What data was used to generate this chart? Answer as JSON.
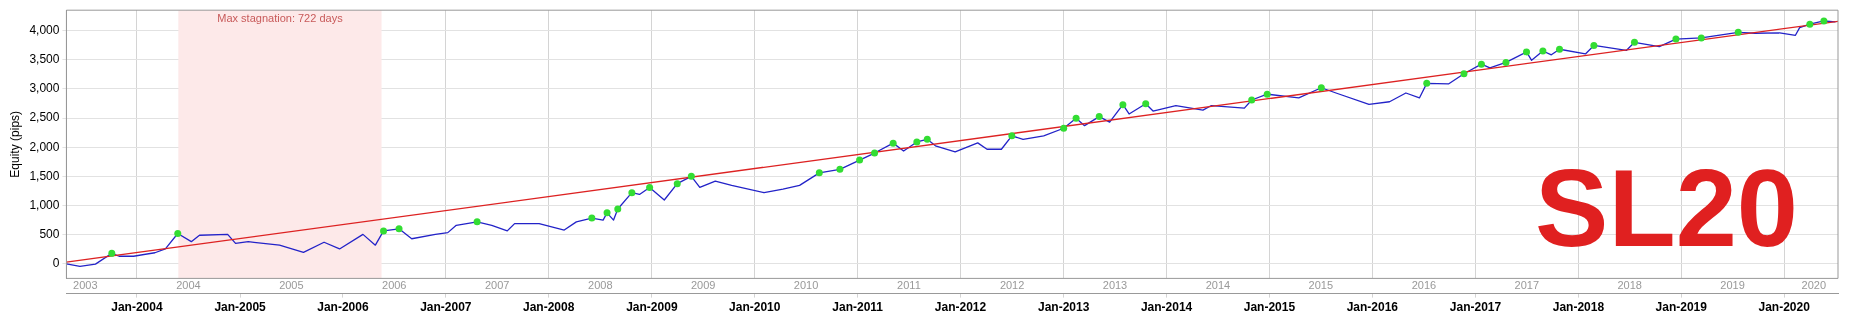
{
  "chart_data": {
    "type": "line",
    "ylabel": "Equity (pips)",
    "xlim": [
      "2003-04-26",
      "2020-07-10"
    ],
    "xticks": [
      {
        "value": "2004-01-01",
        "label": "Jan-2004"
      },
      {
        "value": "2005-01-01",
        "label": "Jan-2005"
      },
      {
        "value": "2006-01-01",
        "label": "Jan-2006"
      },
      {
        "value": "2007-01-01",
        "label": "Jan-2007"
      },
      {
        "value": "2008-01-01",
        "label": "Jan-2008"
      },
      {
        "value": "2009-01-01",
        "label": "Jan-2009"
      },
      {
        "value": "2010-01-01",
        "label": "Jan-2010"
      },
      {
        "value": "2011-01-01",
        "label": "Jan-2011"
      },
      {
        "value": "2012-01-01",
        "label": "Jan-2012"
      },
      {
        "value": "2013-01-01",
        "label": "Jan-2013"
      },
      {
        "value": "2014-01-01",
        "label": "Jan-2014"
      },
      {
        "value": "2015-01-01",
        "label": "Jan-2015"
      },
      {
        "value": "2016-01-01",
        "label": "Jan-2016"
      },
      {
        "value": "2017-01-01",
        "label": "Jan-2017"
      },
      {
        "value": "2018-01-01",
        "label": "Jan-2018"
      },
      {
        "value": "2019-01-01",
        "label": "Jan-2019"
      },
      {
        "value": "2020-01-01",
        "label": "Jan-2020"
      }
    ],
    "x2lim": [
      "2003-04-26",
      "2020-07-10"
    ],
    "x2ticks": [
      {
        "value": "2003-07-02",
        "label": "2003"
      },
      {
        "value": "2004-07-02",
        "label": "2004"
      },
      {
        "value": "2005-07-02",
        "label": "2005"
      },
      {
        "value": "2006-07-02",
        "label": "2006"
      },
      {
        "value": "2007-07-02",
        "label": "2007"
      },
      {
        "value": "2008-07-02",
        "label": "2008"
      },
      {
        "value": "2009-07-02",
        "label": "2009"
      },
      {
        "value": "2010-07-02",
        "label": "2010"
      },
      {
        "value": "2011-07-02",
        "label": "2011"
      },
      {
        "value": "2012-07-02",
        "label": "2012"
      },
      {
        "value": "2013-07-02",
        "label": "2013"
      },
      {
        "value": "2014-07-02",
        "label": "2014"
      },
      {
        "value": "2015-07-02",
        "label": "2015"
      },
      {
        "value": "2016-07-02",
        "label": "2016"
      },
      {
        "value": "2017-07-02",
        "label": "2017"
      },
      {
        "value": "2018-07-02",
        "label": "2018"
      },
      {
        "value": "2019-07-02",
        "label": "2019"
      },
      {
        "value": "2020-04-15",
        "label": "2020"
      }
    ],
    "ylim": [
      -250,
      4350
    ],
    "yticks": [
      0,
      500,
      {
        "value": 1000,
        "label": "1,000"
      },
      {
        "value": 1500,
        "label": "1,500"
      },
      {
        "value": 2000,
        "label": "2,000"
      },
      {
        "value": 2500,
        "label": "2,500"
      },
      {
        "value": 3000,
        "label": "3,000"
      },
      {
        "value": 3500,
        "label": "3,500"
      },
      {
        "value": 4000,
        "label": "4,000"
      }
    ],
    "grid": true,
    "legend": false,
    "bands": [
      {
        "axis": "x",
        "from": "2004-05-27",
        "to": "2006-05-18",
        "label": "Max stagnation: 722 days",
        "color": "#fde9e9"
      }
    ],
    "annotations": [
      "SL20"
    ],
    "series": [
      {
        "type": "line",
        "color": "#2323c8",
        "x": [
          "2003-04-26",
          "2003-06-13",
          "2003-08-07",
          "2003-10-04",
          "2003-10-30",
          "2003-12-20",
          "2004-03-05",
          "2004-04-11",
          "2004-05-25",
          "2004-07-12",
          "2004-08-10",
          "2004-11-18",
          "2004-12-16",
          "2005-01-30",
          "2005-05-21",
          "2005-08-14",
          "2005-10-26",
          "2005-12-20",
          "2006-03-13",
          "2006-04-26",
          "2006-05-25",
          "2006-07-19",
          "2006-09-02",
          "2006-11-25",
          "2007-01-08",
          "2007-02-07",
          "2007-04-22",
          "2007-06-13",
          "2007-08-07",
          "2007-09-02",
          "2007-11-28",
          "2008-02-25",
          "2008-04-08",
          "2008-06-02",
          "2008-07-12",
          "2008-07-26",
          "2008-08-18",
          "2008-09-02",
          "2008-10-22",
          "2008-11-18",
          "2008-12-24",
          "2009-02-14",
          "2009-04-01",
          "2009-05-21",
          "2009-06-20",
          "2009-08-14",
          "2009-10-11",
          "2010-02-03",
          "2010-04-11",
          "2010-06-09",
          "2010-08-18",
          "2010-10-30",
          "2011-01-08",
          "2011-03-02",
          "2011-05-07",
          "2011-06-13",
          "2011-07-30",
          "2011-09-05",
          "2011-10-04",
          "2011-12-13",
          "2012-03-02",
          "2012-04-04",
          "2012-05-25",
          "2012-07-01",
          "2012-08-10",
          "2012-10-22",
          "2013-01-01",
          "2013-02-14",
          "2013-03-16",
          "2013-05-07",
          "2013-06-13",
          "2013-07-30",
          "2013-08-21",
          "2013-10-19",
          "2013-11-14",
          "2014-02-03",
          "2014-05-10",
          "2014-06-09",
          "2014-10-04",
          "2014-10-30",
          "2014-12-24",
          "2015-04-15",
          "2015-07-04",
          "2015-08-25",
          "2015-12-20",
          "2016-03-02",
          "2016-04-29",
          "2016-06-16",
          "2016-07-12",
          "2016-09-27",
          "2016-11-21",
          "2017-01-22",
          "2017-02-21",
          "2017-04-19",
          "2017-07-01",
          "2017-07-19",
          "2017-08-28",
          "2017-09-27",
          "2017-10-26",
          "2018-01-26",
          "2018-02-25",
          "2018-06-20",
          "2018-07-19",
          "2018-10-15",
          "2018-12-13",
          "2019-03-13",
          "2019-07-22",
          "2019-09-20",
          "2019-12-16",
          "2020-02-10",
          "2020-02-25",
          "2020-04-01",
          "2020-05-21",
          "2020-07-01"
        ],
        "values": [
          0,
          -45,
          -5,
          180,
          130,
          130,
          190,
          255,
          520,
          380,
          490,
          505,
          350,
          380,
          320,
          195,
          370,
          255,
          505,
          320,
          565,
          600,
          430,
          505,
          535,
          660,
          720,
          660,
          565,
          690,
          690,
          580,
          720,
          785,
          750,
          875,
          750,
          940,
          1220,
          1190,
          1310,
          1095,
          1375,
          1500,
          1310,
          1420,
          1345,
          1220,
          1280,
          1345,
          1560,
          1620,
          1780,
          1900,
          2070,
          1935,
          2090,
          2135,
          2025,
          1920,
          2075,
          1965,
          1965,
          2195,
          2135,
          2195,
          2325,
          2495,
          2370,
          2525,
          2430,
          2730,
          2570,
          2745,
          2620,
          2715,
          2635,
          2715,
          2670,
          2810,
          2910,
          2845,
          3020,
          2930,
          2735,
          2780,
          2930,
          2845,
          3095,
          3085,
          3260,
          3425,
          3360,
          3455,
          3635,
          3490,
          3650,
          3585,
          3680,
          3600,
          3745,
          3660,
          3800,
          3725,
          3855,
          3875,
          3970,
          3955,
          3960,
          3920,
          4050,
          4110,
          4165,
          4150
        ]
      },
      {
        "type": "line",
        "color": "#dd2222",
        "x": [
          "2003-04-26",
          "2020-07-10"
        ],
        "values": [
          30,
          4160
        ]
      },
      {
        "type": "scatter",
        "color": "#33dd33",
        "marker": "circle",
        "x": [
          "2003-10-04",
          "2004-05-25",
          "2006-05-25",
          "2006-07-19",
          "2007-04-22",
          "2008-06-02",
          "2008-07-26",
          "2008-09-02",
          "2008-10-22",
          "2008-12-24",
          "2009-04-01",
          "2009-05-21",
          "2010-08-18",
          "2010-10-30",
          "2011-01-08",
          "2011-03-02",
          "2011-05-07",
          "2011-07-30",
          "2011-09-05",
          "2012-07-01",
          "2013-01-01",
          "2013-02-14",
          "2013-05-07",
          "2013-07-30",
          "2013-10-19",
          "2014-10-30",
          "2014-12-24",
          "2015-07-04",
          "2016-07-12",
          "2016-11-21",
          "2017-01-22",
          "2017-04-19",
          "2017-07-01",
          "2017-08-28",
          "2017-10-26",
          "2018-02-25",
          "2018-07-19",
          "2018-12-13",
          "2019-03-13",
          "2019-07-22",
          "2020-04-01",
          "2020-05-21"
        ],
        "values": [
          180,
          520,
          565,
          600,
          720,
          785,
          875,
          940,
          1220,
          1310,
          1375,
          1500,
          1560,
          1620,
          1780,
          1900,
          2070,
          2090,
          2135,
          2195,
          2325,
          2495,
          2525,
          2730,
          2745,
          2810,
          2910,
          3020,
          3095,
          3260,
          3425,
          3455,
          3635,
          3650,
          3680,
          3745,
          3800,
          3855,
          3875,
          3970,
          4110,
          4165
        ]
      }
    ]
  }
}
